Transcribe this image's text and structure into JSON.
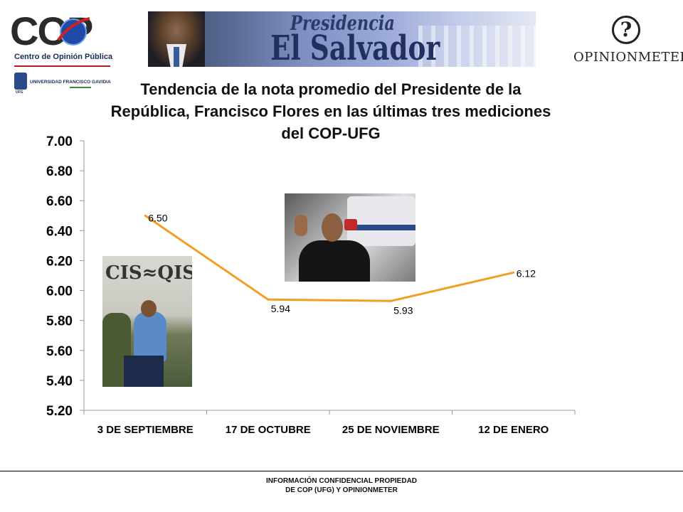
{
  "logos": {
    "cop_letters": "COP",
    "cop_subtitle": "Centro de Opinión Pública",
    "ufg_name": "UNIVERSIDAD FRANCISCO GAVIDIA",
    "ufg_abbr": "UFG",
    "opinionmeter_symbol": "?",
    "opinionmeter_name": "OPINIONMETER"
  },
  "banner": {
    "line1": "Presidencia",
    "line2": "El Salvador"
  },
  "photos": {
    "left_graffiti": "CIS≈QIS mara"
  },
  "footer": {
    "line1": "INFORMACIÓN CONFIDENCIAL PROPIEDAD",
    "line2": "DE COP (UFG) Y OPINIONMETER"
  },
  "colors": {
    "series_line": "#f0a020",
    "axis": "#999999"
  },
  "chart_data": {
    "type": "line",
    "title": "Tendencia de la nota promedio del Presidente de la República, Francisco Flores en las últimas tres mediciones del COP-UFG",
    "categories": [
      "3 DE SEPTIEMBRE",
      "17 DE OCTUBRE",
      "25 DE NOVIEMBRE",
      "12 DE ENERO"
    ],
    "series": [
      {
        "values": [
          6.5,
          5.94,
          5.93,
          6.12
        ],
        "labels": [
          "6.50",
          "5.94",
          "5.93",
          "6.12"
        ]
      }
    ],
    "yticks": [
      "7.00",
      "6.80",
      "6.60",
      "6.40",
      "6.20",
      "6.00",
      "5.80",
      "5.60",
      "5.40",
      "5.20"
    ],
    "ylim": [
      5.2,
      7.0
    ],
    "xlabel": "",
    "ylabel": "",
    "grid": false,
    "legend": "none"
  }
}
